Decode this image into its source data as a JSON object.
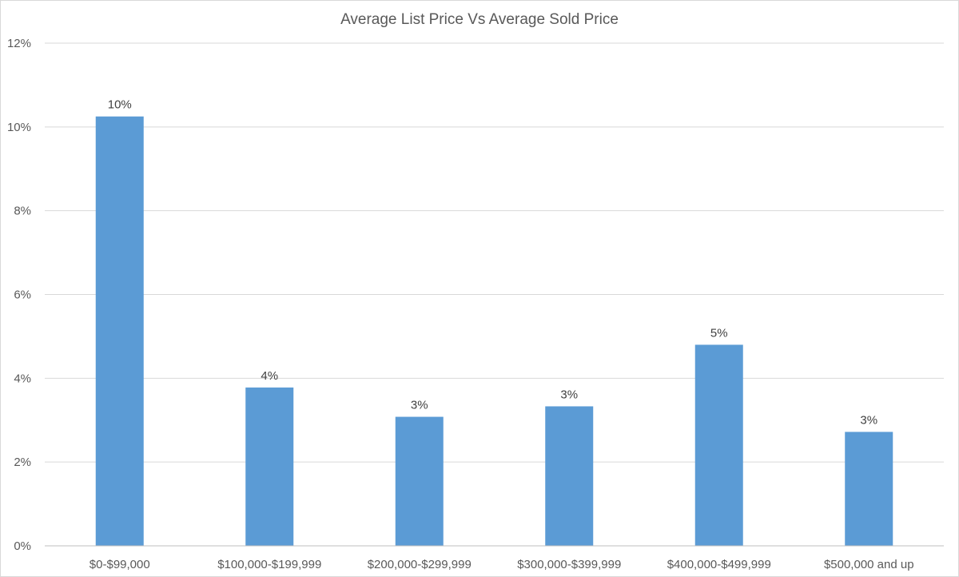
{
  "chart_data": {
    "type": "bar",
    "title": "Average List Price Vs Average Sold Price",
    "xlabel": "",
    "ylabel": "",
    "categories": [
      "$0-$99,000",
      "$100,000-$199,999",
      "$200,000-$299,999",
      "$300,000-$399,999",
      "$400,000-$499,999",
      "$500,000 and up"
    ],
    "values": [
      10.25,
      3.78,
      3.08,
      3.33,
      4.8,
      2.72
    ],
    "data_labels": [
      "10%",
      "4%",
      "3%",
      "3%",
      "5%",
      "3%"
    ],
    "ylim": [
      0,
      12
    ],
    "yticks": [
      0,
      2,
      4,
      6,
      8,
      10,
      12
    ],
    "ytick_labels": [
      "0%",
      "2%",
      "4%",
      "6%",
      "8%",
      "10%",
      "12%"
    ],
    "bar_color": "#5b9bd5",
    "grid": true,
    "legend": "none"
  }
}
